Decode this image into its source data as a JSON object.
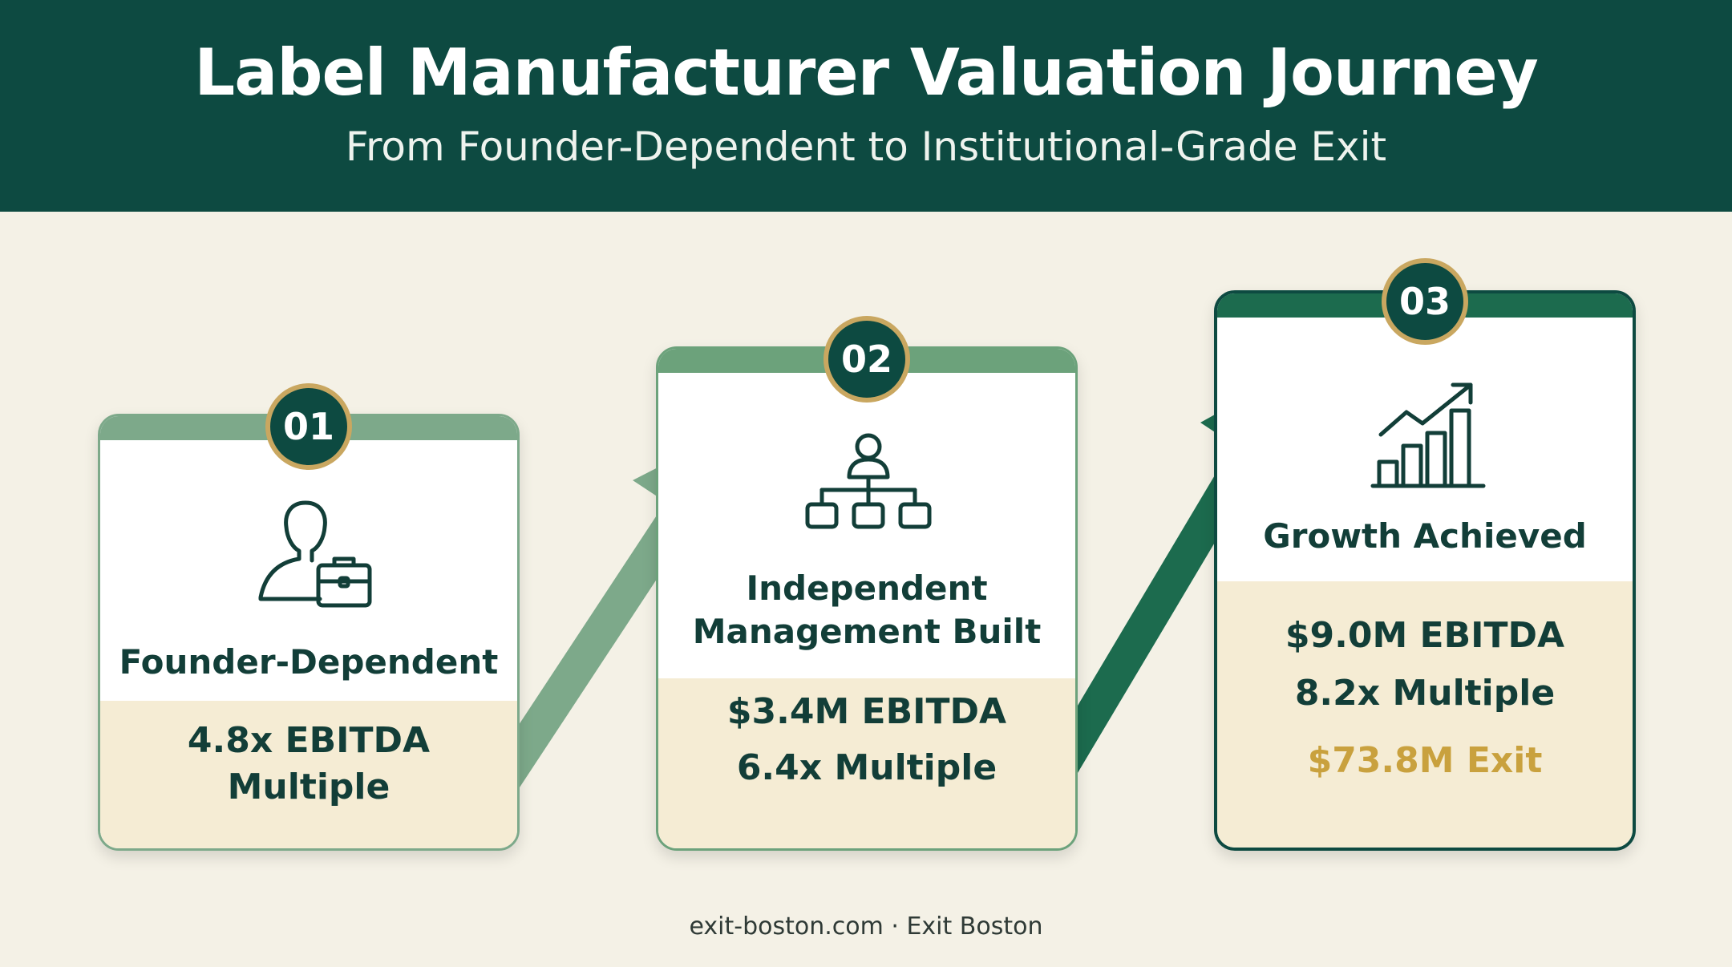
{
  "header": {
    "title": "Label Manufacturer Valuation Journey",
    "subtitle": "From Founder-Dependent to Institutional-Grade Exit"
  },
  "stages": [
    {
      "number": "01",
      "title": "Founder-Dependent",
      "metric_line1": "4.8x EBITDA",
      "metric_line2": "Multiple",
      "icon": "founder-with-briefcase-icon",
      "accent": "#7da98a"
    },
    {
      "number": "02",
      "title_line1": "Independent",
      "title_line2": "Management Built",
      "metric_line1": "$3.4M EBITDA",
      "metric_line2": "6.4x Multiple",
      "icon": "org-chart-icon",
      "accent": "#6ca27b"
    },
    {
      "number": "03",
      "title": "Growth Achieved",
      "metric_line1": "$9.0M EBITDA",
      "metric_line2": "8.2x Multiple",
      "exit_value": "$73.8M Exit",
      "icon": "growth-chart-icon",
      "accent": "#1c6b4e"
    }
  ],
  "colors": {
    "header_bg": "#0d4a41",
    "page_bg": "#f4f1e6",
    "badge_ring": "#c9a760",
    "exit_gold": "#c9a13e",
    "lower_panel": "#f5ecd4"
  },
  "footer": {
    "text": "exit-boston.com · Exit Boston"
  }
}
